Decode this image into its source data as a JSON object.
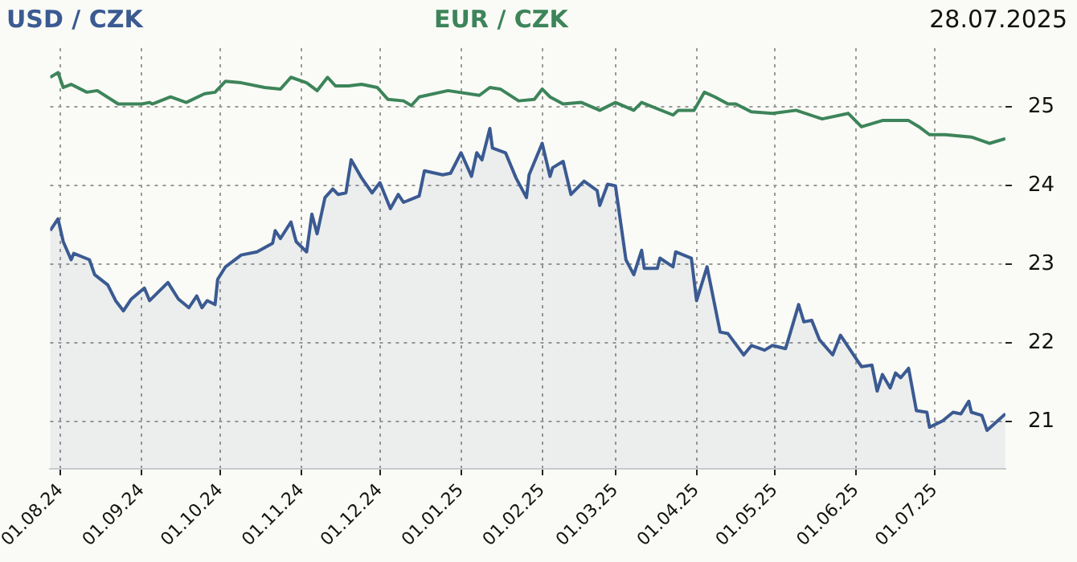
{
  "chart_data": {
    "type": "line",
    "legend": "top",
    "grid": true,
    "tick_labels": true,
    "annotations": [
      "28.07.2025"
    ],
    "xlim": [
      "2024-07-28",
      "2025-07-28"
    ],
    "xticks": [
      {
        "value": "2024-08-01",
        "label": "01.08.24"
      },
      {
        "value": "2024-09-01",
        "label": "01.09.24"
      },
      {
        "value": "2024-10-01",
        "label": "01.10.24"
      },
      {
        "value": "2024-11-01",
        "label": "01.11.24"
      },
      {
        "value": "2024-12-01",
        "label": "01.12.24"
      },
      {
        "value": "2025-01-01",
        "label": "01.01.25"
      },
      {
        "value": "2025-02-01",
        "label": "01.02.25"
      },
      {
        "value": "2025-03-01",
        "label": "01.03.25"
      },
      {
        "value": "2025-04-01",
        "label": "01.04.25"
      },
      {
        "value": "2025-05-01",
        "label": "01.05.25"
      },
      {
        "value": "2025-06-01",
        "label": "01.06.25"
      },
      {
        "value": "2025-07-01",
        "label": "01.07.25"
      }
    ],
    "ylim": [
      20.4,
      25.75
    ],
    "yticks": [
      21,
      22,
      23,
      24,
      25
    ],
    "series": [
      {
        "name": "USD / CZK",
        "type": "area",
        "color": "#3b5a92",
        "x": [
          "2024-07-28",
          "2024-07-31",
          "2024-08-02",
          "2024-08-05",
          "2024-08-06",
          "2024-08-12",
          "2024-08-14",
          "2024-08-19",
          "2024-08-22",
          "2024-08-25",
          "2024-08-28",
          "2024-09-02",
          "2024-09-04",
          "2024-09-11",
          "2024-09-15",
          "2024-09-19",
          "2024-09-22",
          "2024-09-24",
          "2024-09-26",
          "2024-09-29",
          "2024-09-30",
          "2024-10-03",
          "2024-10-09",
          "2024-10-15",
          "2024-10-21",
          "2024-10-22",
          "2024-10-24",
          "2024-10-28",
          "2024-10-30",
          "2024-11-03",
          "2024-11-05",
          "2024-11-07",
          "2024-11-10",
          "2024-11-13",
          "2024-11-15",
          "2024-11-18",
          "2024-11-20",
          "2024-11-24",
          "2024-11-28",
          "2024-12-01",
          "2024-12-05",
          "2024-12-08",
          "2024-12-10",
          "2024-12-16",
          "2024-12-18",
          "2024-12-25",
          "2024-12-28",
          "2025-01-01",
          "2025-01-05",
          "2025-01-07",
          "2025-01-09",
          "2025-01-12",
          "2025-01-13",
          "2025-01-18",
          "2025-01-22",
          "2025-01-26",
          "2025-01-27",
          "2025-02-01",
          "2025-02-04",
          "2025-02-05",
          "2025-02-09",
          "2025-02-12",
          "2025-02-17",
          "2025-02-22",
          "2025-02-23",
          "2025-02-26",
          "2025-03-01",
          "2025-03-05",
          "2025-03-08",
          "2025-03-11",
          "2025-03-12",
          "2025-03-17",
          "2025-03-18",
          "2025-03-23",
          "2025-03-24",
          "2025-03-30",
          "2025-04-01",
          "2025-04-05",
          "2025-04-10",
          "2025-04-13",
          "2025-04-19",
          "2025-04-22",
          "2025-04-27",
          "2025-04-30",
          "2025-05-05",
          "2025-05-06",
          "2025-05-10",
          "2025-05-12",
          "2025-05-15",
          "2025-05-18",
          "2025-05-23",
          "2025-05-26",
          "2025-05-31",
          "2025-06-03",
          "2025-06-07",
          "2025-06-09",
          "2025-06-11",
          "2025-06-14",
          "2025-06-16",
          "2025-06-18",
          "2025-06-21",
          "2025-06-24",
          "2025-06-28",
          "2025-06-29",
          "2025-07-04",
          "2025-07-08",
          "2025-07-11",
          "2025-07-14",
          "2025-07-15",
          "2025-07-19",
          "2025-07-21",
          "2025-07-28"
        ],
        "values": [
          23.43,
          23.58,
          23.29,
          23.06,
          23.14,
          23.06,
          22.87,
          22.74,
          22.54,
          22.41,
          22.56,
          22.7,
          22.54,
          22.77,
          22.56,
          22.45,
          22.6,
          22.45,
          22.54,
          22.49,
          22.81,
          22.97,
          23.12,
          23.16,
          23.27,
          23.43,
          23.33,
          23.54,
          23.29,
          23.16,
          23.64,
          23.39,
          23.85,
          23.96,
          23.89,
          23.91,
          24.33,
          24.1,
          23.91,
          24.04,
          23.71,
          23.89,
          23.79,
          23.87,
          24.19,
          24.14,
          24.16,
          24.42,
          24.12,
          24.42,
          24.33,
          24.73,
          24.48,
          24.42,
          24.1,
          23.85,
          24.14,
          24.54,
          24.12,
          24.23,
          24.31,
          23.89,
          24.06,
          23.94,
          23.75,
          24.02,
          24.0,
          23.06,
          22.87,
          23.18,
          22.95,
          22.95,
          23.08,
          22.97,
          23.16,
          23.08,
          22.54,
          22.97,
          22.14,
          22.12,
          21.85,
          21.97,
          21.91,
          21.97,
          21.93,
          22.04,
          22.49,
          22.27,
          22.29,
          22.04,
          21.85,
          22.1,
          21.85,
          21.7,
          21.72,
          21.39,
          21.6,
          21.43,
          21.62,
          21.56,
          21.68,
          21.14,
          21.12,
          20.93,
          21.01,
          21.12,
          21.1,
          21.26,
          21.12,
          21.08,
          20.89,
          21.1
        ]
      },
      {
        "name": "EUR / CZK",
        "type": "line",
        "color": "#3d845a",
        "x": [
          "2024-07-28",
          "2024-07-31",
          "2024-08-02",
          "2024-08-05",
          "2024-08-11",
          "2024-08-15",
          "2024-08-23",
          "2024-09-01",
          "2024-09-04",
          "2024-09-05",
          "2024-09-12",
          "2024-09-18",
          "2024-09-25",
          "2024-09-29",
          "2024-10-03",
          "2024-10-09",
          "2024-10-18",
          "2024-10-24",
          "2024-10-28",
          "2024-11-03",
          "2024-11-07",
          "2024-11-11",
          "2024-11-14",
          "2024-11-19",
          "2024-11-24",
          "2024-11-30",
          "2024-12-04",
          "2024-12-10",
          "2024-12-13",
          "2024-12-16",
          "2024-12-27",
          "2025-01-08",
          "2025-01-12",
          "2025-01-16",
          "2025-01-23",
          "2025-01-29",
          "2025-02-01",
          "2025-02-04",
          "2025-02-09",
          "2025-02-16",
          "2025-02-23",
          "2025-03-01",
          "2025-03-08",
          "2025-03-11",
          "2025-03-23",
          "2025-03-25",
          "2025-03-31",
          "2025-04-04",
          "2025-04-08",
          "2025-04-13",
          "2025-04-16",
          "2025-04-22",
          "2025-04-30",
          "2025-05-09",
          "2025-05-19",
          "2025-05-29",
          "2025-06-03",
          "2025-06-11",
          "2025-06-21",
          "2025-06-25",
          "2025-06-29",
          "2025-07-05",
          "2025-07-15",
          "2025-07-22",
          "2025-07-28"
        ],
        "values": [
          25.38,
          25.44,
          25.25,
          25.29,
          25.19,
          25.21,
          25.04,
          25.04,
          25.06,
          25.04,
          25.13,
          25.06,
          25.17,
          25.19,
          25.33,
          25.31,
          25.25,
          25.23,
          25.38,
          25.31,
          25.21,
          25.38,
          25.27,
          25.27,
          25.29,
          25.25,
          25.1,
          25.08,
          25.02,
          25.13,
          25.21,
          25.15,
          25.25,
          25.23,
          25.08,
          25.1,
          25.23,
          25.13,
          25.04,
          25.06,
          24.96,
          25.06,
          24.96,
          25.06,
          24.9,
          24.96,
          24.96,
          25.19,
          25.13,
          25.04,
          25.04,
          24.94,
          24.92,
          24.96,
          24.85,
          24.92,
          24.75,
          24.83,
          24.83,
          24.75,
          24.65,
          24.65,
          24.62,
          24.54,
          24.6
        ]
      }
    ]
  }
}
